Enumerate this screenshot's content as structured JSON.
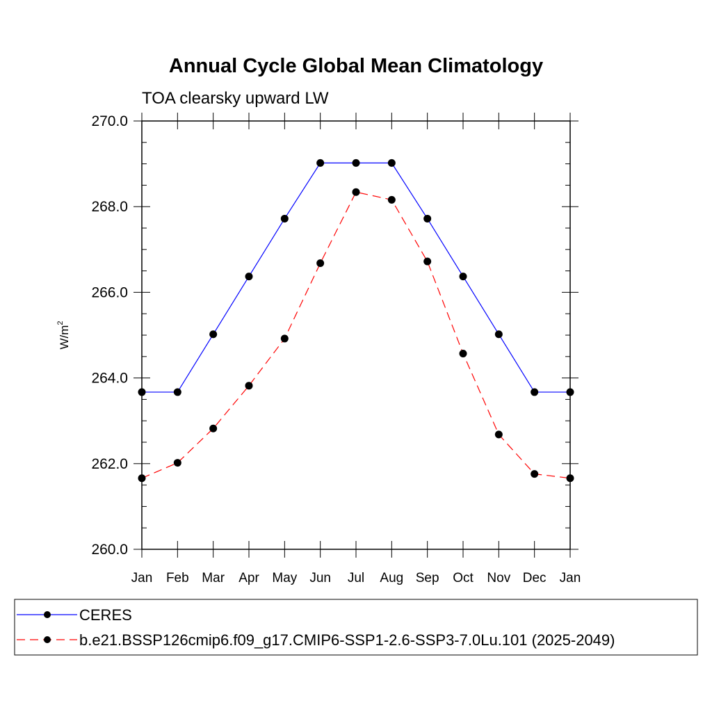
{
  "chart_data": {
    "type": "line",
    "title": "Annual Cycle Global Mean Climatology",
    "subtitle": "TOA clearsky upward LW",
    "ylabel": "W/m",
    "ylabel_sup": "2",
    "ylim": [
      260,
      270
    ],
    "yticks": [
      "260.0",
      "262.0",
      "264.0",
      "266.0",
      "268.0",
      "270.0"
    ],
    "categories": [
      "Jan",
      "Feb",
      "Mar",
      "Apr",
      "May",
      "Jun",
      "Jul",
      "Aug",
      "Sep",
      "Oct",
      "Nov",
      "Dec",
      "Jan"
    ],
    "grid": false,
    "legend_position": "bottom",
    "series": [
      {
        "name": "CERES",
        "color": "#0000ff",
        "dash": "solid",
        "values": [
          263.67,
          263.67,
          265.02,
          266.37,
          267.72,
          269.02,
          269.02,
          269.02,
          267.72,
          266.37,
          265.02,
          263.67,
          263.67
        ]
      },
      {
        "name": "b.e21.BSSP126cmip6.f09_g17.CMIP6-SSP1-2.6-SSP3-7.0Lu.101 (2025-2049)",
        "color": "#ff0000",
        "dash": "dashed",
        "values": [
          261.66,
          262.02,
          262.82,
          263.82,
          264.92,
          266.68,
          268.34,
          268.16,
          266.72,
          264.57,
          262.68,
          261.76,
          261.66
        ]
      }
    ]
  }
}
